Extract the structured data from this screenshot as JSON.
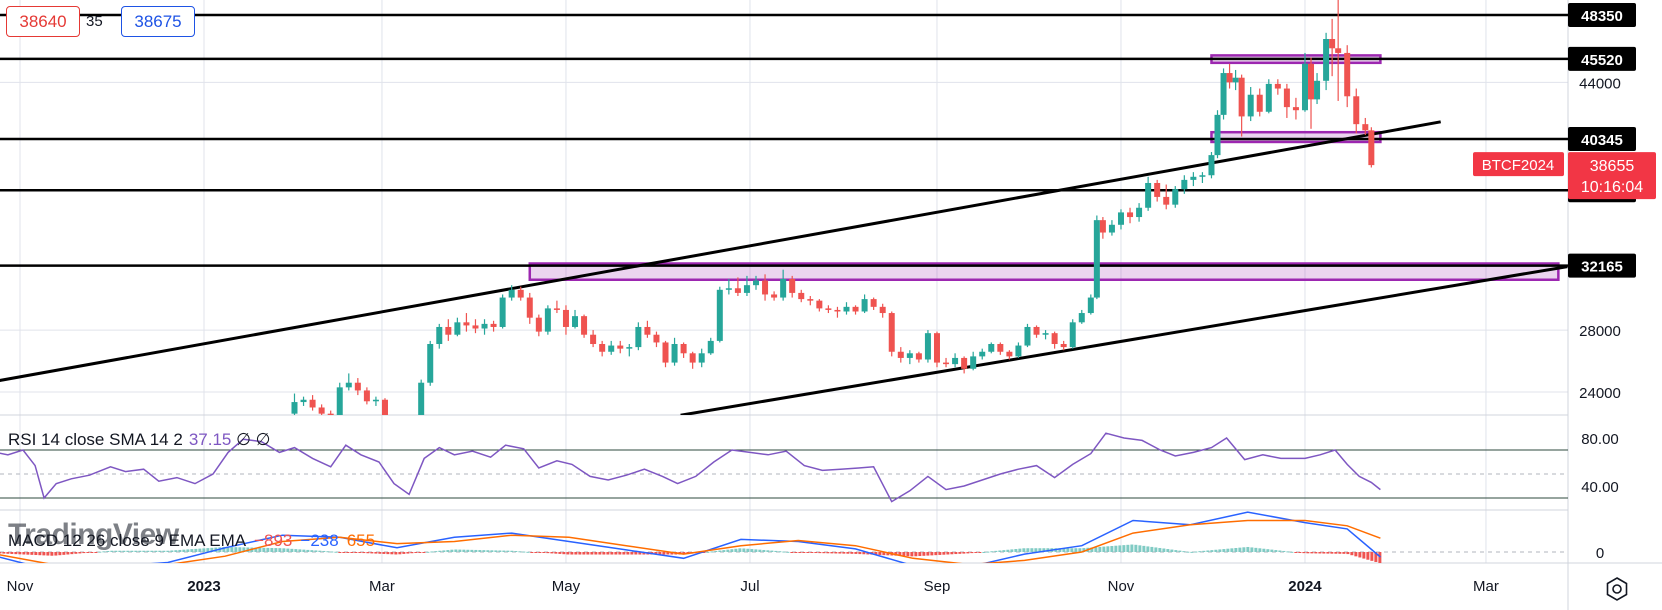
{
  "header": {
    "bid": "38640",
    "spread": "35",
    "ask": "38675"
  },
  "chart_data": [
    {
      "type": "candlestick",
      "symbol": "BTCF2024",
      "last_price": "38655",
      "countdown": "10:16:04",
      "x_axis_labels": [
        "Nov",
        "2023",
        "Mar",
        "May",
        "Jul",
        "Sep",
        "Nov",
        "2024",
        "Mar"
      ],
      "y_axis_labels": [
        "44000",
        "28000",
        "24000"
      ],
      "ylim": [
        22500,
        49000
      ],
      "horizontal_levels": [
        {
          "label": "48350",
          "value": 48350
        },
        {
          "label": "45520",
          "value": 45520
        },
        {
          "label": "40345",
          "value": 40345
        },
        {
          "label": "37030",
          "value": 37030
        },
        {
          "label": "32165",
          "value": 32165
        }
      ],
      "zones": [
        {
          "from_date": "2023-04-19",
          "to_date": "2024-03-25",
          "low": 31250,
          "high": 32300
        },
        {
          "from_date": "2023-12-01",
          "to_date": "2024-01-26",
          "low": 45260,
          "high": 45740
        },
        {
          "from_date": "2023-12-01",
          "to_date": "2024-01-26",
          "low": 40150,
          "high": 40780
        }
      ],
      "trendlines": [
        {
          "from_date": "2022-10-24",
          "from": 24700,
          "to_date": "2024-02-15",
          "to": 41450
        },
        {
          "from_date": "2023-06-08",
          "from": 22500,
          "to_date": "2024-03-28",
          "to": 32100
        }
      ],
      "candles_text": "2023-01-31,22600,23900,22300,23350;2023-02-03,23350,23700,23100,23500;2023-02-06,23500,23800,22800,23000;2023-02-09,23000,23200,22400,22600;2023-02-12,22600,22800,22100,22500;2023-02-15,22500,24600,22300,24300;2023-02-18,24300,25200,24100,24600;2023-02-21,24600,24900,23800,24100;2023-02-24,24100,24300,23200,23400;2023-02-27,23400,23700,23100,23500;2023-03-02,23500,23600,22200,22400;2023-03-05,22400,22500,21900,22100;2023-03-08,22100,22200,19900,20200;2023-03-11,20200,20500,19700,20400;2023-03-14,20400,24800,20300,24600;2023-03-17,24600,27300,24400,27100;2023-03-20,27100,28400,26800,28200;2023-03-23,28200,28700,27300,27700;2023-03-26,27700,28800,27600,28500;2023-03-29,28500,29100,27900,28300;2023-04-01,28300,28700,27800,28100;2023-04-04,28100,28700,27700,28400;2023-04-07,28400,28600,27900,28200;2023-04-10,28200,30300,28100,30100;2023-04-13,30100,30900,29900,30600;2023-04-16,30600,30800,29900,30100;2023-04-19,30100,30400,28400,28800;2023-04-22,28800,29000,27600,27900;2023-04-25,27900,29600,27700,29400;2023-04-28,29400,29900,29100,29300;2023-05-01,29300,29600,27700,28200;2023-05-04,28200,29300,28100,28900;2023-05-07,28900,29000,27500,27700;2023-05-10,27700,28000,26900,27100;2023-05-13,27100,27300,26300,26600;2023-05-16,26600,27300,26400,27000;2023-05-19,27000,27300,26500,26800;2023-05-22,26800,27100,26300,26900;2023-05-25,26900,28500,26700,28200;2023-05-28,28200,28600,27500,27700;2023-05-31,27700,27900,26900,27200;2023-06-03,27200,27300,25600,25900;2023-06-06,25900,27500,25700,27100;2023-06-09,27100,27200,26200,26500;2023-06-12,26500,26600,25500,25900;2023-06-15,25900,26800,25600,26500;2023-06-18,26500,27500,26400,27300;2023-06-21,27300,30800,27200,30600;2023-06-24,30600,31300,30300,30700;2023-06-27,30700,31400,30200,30400;2023-06-30,30400,31500,30200,30900;2023-07-03,30900,31500,30600,31200;2023-07-06,31200,31600,29900,30300;2023-07-09,30300,30500,29900,30100;2023-07-12,30100,31900,29900,31300;2023-07-15,31300,31500,30100,30400;2023-07-18,30400,30600,29800,30000;2023-07-21,30000,30200,29600,29900;2023-07-24,29900,30000,29200,29400;2023-07-27,29400,29600,29100,29300;2023-07-30,29300,29500,28800,29200;2023-08-02,29200,29800,29000,29500;2023-08-05,29500,29600,29000,29200;2023-08-08,29200,30300,29100,30000;2023-08-11,30000,30100,29300,29500;2023-08-14,29500,29700,28800,29100;2023-08-17,29100,29200,26300,26600;2023-08-20,26600,26900,25900,26200;2023-08-23,26200,26700,25800,26500;2023-08-26,26500,26600,25900,26100;2023-08-29,26100,28000,25900,27800;2023-09-01,27800,27900,25600,25900;2023-09-04,25900,26200,25600,25800;2023-09-07,25800,26500,25600,26200;2023-09-10,26200,26300,25200,25500;2023-09-13,25500,26600,25400,26300;2023-09-16,26300,26800,26100,26600;2023-09-19,26600,27200,26500,27100;2023-09-22,27100,27200,26400,26600;2023-09-25,26600,26700,26100,26300;2023-09-28,26300,27200,26200,27000;2023-10-01,27000,28400,26900,28200;2023-10-04,28200,28300,27500,27700;2023-10-07,27700,28000,27400,27800;2023-10-10,27800,27900,26800,27100;2023-10-13,27100,27300,26700,26900;2023-10-16,26900,28700,26800,28500;2023-10-19,28500,29300,28400,29100;2023-10-22,29100,30300,29000,30100;2023-10-24,30100,35400,30000,35100;2023-10-26,35100,35300,33900,34300;2023-10-29,34300,35100,34100,34800;2023-11-01,34800,35800,34500,35600;2023-11-04,35600,35900,34900,35300;2023-11-07,35300,36200,35000,35900;2023-11-10,35900,37900,35700,37500;2023-11-13,37500,37700,36300,36600;2023-11-16,36600,37400,35800,36100;2023-11-19,36100,37300,35900,37100;2023-11-22,37100,38000,36800,37700;2023-11-25,37700,38200,37300,37900;2023-11-28,37900,38200,37500,38000;2023-12-01,38000,39500,37800,39300;2023-12-03,39300,42200,39100,41900;2023-12-05,41900,44900,41600,44600;2023-12-07,44600,45200,43600,44000;2023-12-09,44000,44800,43500,44300;2023-12-11,44300,44500,40500,41800;2023-12-14,41800,43700,41500,43200;2023-12-17,43200,43600,41800,42100;2023-12-20,42100,44200,42000,43900;2023-12-23,43900,44200,43200,43600;2023-12-26,43600,43900,41700,42400;2023-12-29,42400,43000,41600,42200;2024-01-01,42200,45900,42100,45200;2024-01-03,45200,45600,41000,42900;2024-01-05,42900,44600,42600,44100;2024-01-08,44100,47200,43500,46800;2024-01-10,46800,48100,44400,46200;2024-01-12,46200,50300,42800,45900;2024-01-15,45900,46400,42400,43100;2024-01-18,43100,43600,40700,41300;2024-01-21,41300,41700,40600,40900;2024-01-23,40900,41100,38500,38655",
      "rsi": {
        "label": "RSI 14 close SMA 14 2",
        "value": "37.15",
        "extra": "∅ ∅",
        "y_axis_labels": [
          "80.00",
          "40.00"
        ],
        "upper_band": 70,
        "lower_band": 30,
        "ylim": [
          15,
          95
        ],
        "values_text": "2022-10-24,68;2022-10-28,66;2022-11-02,70;2022-11-06,57;2022-11-09,30;2022-11-13,42;2022-11-18,46;2022-11-24,49;2022-12-01,56;2022-12-06,52;2022-12-12,54;2022-12-17,44;2022-12-23,47;2022-12-29,42;2023-01-04,50;2023-01-09,68;2023-01-14,79;2023-01-20,77;2023-01-26,68;2023-01-31,72;2023-02-06,63;2023-02-12,56;2023-02-17,74;2023-02-22,66;2023-02-28,60;2023-03-05,42;2023-03-10,33;2023-03-15,63;2023-03-20,72;2023-03-25,66;2023-03-31,69;2023-04-06,64;2023-04-11,74;2023-04-17,71;2023-04-22,55;2023-04-28,61;2023-05-03,58;2023-05-09,48;2023-05-15,45;2023-05-21,49;2023-05-27,54;2023-06-02,48;2023-06-07,42;2023-06-13,48;2023-06-19,60;2023-06-25,70;2023-07-01,68;2023-07-07,66;2023-07-13,69;2023-07-19,57;2023-07-25,53;2023-07-31,54;2023-08-06,55;2023-08-11,56;2023-08-17,27;2023-08-23,36;2023-08-29,48;2023-09-04,37;2023-09-10,40;2023-09-16,45;2023-09-22,50;2023-09-28,54;2023-10-04,57;2023-10-10,47;2023-10-16,58;2023-10-22,67;2023-10-27,84;2023-11-02,80;2023-11-08,78;2023-11-14,70;2023-11-19,65;2023-11-25,68;2023-12-01,72;2023-12-06,80;2023-12-12,62;2023-12-18,66;2023-12-24,63;2024-01-01,63;2024-01-06,66;2024-01-11,70;2024-01-15,58;2024-01-19,48;2024-01-23,43;2024-01-26,37"
      },
      "macd": {
        "label": "MACD 12 26 close 9 EMA EMA",
        "histogram": "−893",
        "macd": "−238",
        "signal": "655",
        "y_axis_labels": [
          "0"
        ],
        "ylim": [
          -1400,
          2000
        ],
        "macd_text": "2022-10-24,-200;2022-11-12,-900;2022-12-01,-700;2022-12-20,-500;2023-01-08,200;2023-01-27,800;2023-02-15,700;2023-03-06,200;2023-03-25,700;2023-04-13,900;2023-05-02,500;2023-05-21,100;2023-06-09,-300;2023-06-28,600;2023-07-17,500;2023-08-05,150;2023-08-24,-650;2023-09-12,-700;2023-09-30,-100;2023-10-19,300;2023-11-05,1500;2023-11-24,1300;2023-12-13,1900;2024-01-01,1400;2024-01-15,1100;2024-01-26,-238",
        "signal_text": "2022-10-24,-100;2022-11-12,-600;2022-12-01,-800;2022-12-20,-600;2023-01-08,-200;2023-01-27,500;2023-02-15,700;2023-03-06,400;2023-03-25,500;2023-04-13,800;2023-05-02,700;2023-05-21,300;2023-06-09,-100;2023-06-28,300;2023-07-17,550;2023-08-05,300;2023-08-24,-300;2023-09-12,-600;2023-09-30,-400;2023-10-19,0;2023-11-05,900;2023-11-24,1300;2023-12-13,1500;2024-01-01,1500;2024-01-15,1250;2024-01-26,655"
      }
    }
  ],
  "watermark": "TradingView",
  "icons": {
    "settings": "gear-icon"
  },
  "colors": {
    "up": "#26a69a",
    "down": "#ef5350",
    "zone_border": "#9c27b0",
    "zone_fill": "rgba(156,39,176,0.2)",
    "rsi_line": "#7e57c2",
    "macd_line": "#2962ff",
    "signal_line": "#ff6d00",
    "price_badge": "#f23645"
  }
}
